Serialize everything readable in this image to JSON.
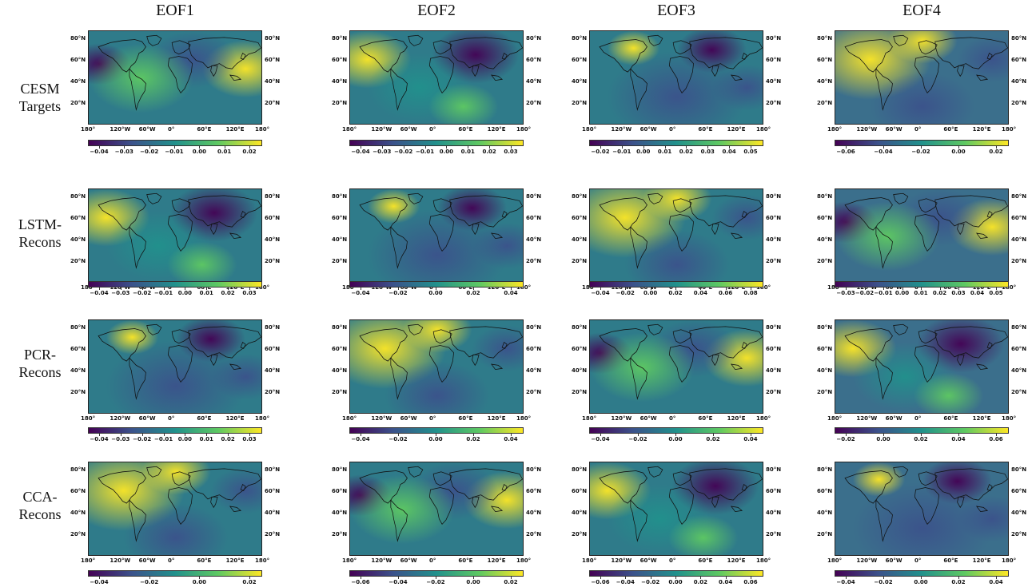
{
  "figure": {
    "columns": [
      "EOF1",
      "EOF2",
      "EOF3",
      "EOF4"
    ],
    "rows": [
      {
        "line1": "CESM",
        "line2": "Targets"
      },
      {
        "line1": "LSTM-",
        "line2": "Recons"
      },
      {
        "line1": "PCR-",
        "line2": "Recons"
      },
      {
        "line1": "CCA-",
        "line2": "Recons"
      }
    ],
    "lat_labels": [
      "80°N",
      "60°N",
      "40°N",
      "20°N"
    ],
    "lon_labels": [
      "180°",
      "120°W",
      "60°W",
      "0°",
      "60°E",
      "120°E",
      "180°"
    ],
    "colormap": [
      "#440154",
      "#3b528b",
      "#21918c",
      "#5ec962",
      "#fde725"
    ],
    "colorbars": [
      [
        [
          "−0.04",
          "−0.03",
          "−0.02",
          "−0.01",
          "0.00",
          "0.01",
          "0.02"
        ],
        [
          "−0.04",
          "−0.03",
          "−0.02",
          "−0.01",
          "0.00",
          "0.01",
          "0.02",
          "0.03"
        ],
        [
          "−0.02",
          "−0.01",
          "0.00",
          "0.01",
          "0.02",
          "0.03",
          "0.04",
          "0.05"
        ],
        [
          "−0.06",
          "−0.04",
          "−0.02",
          "0.00",
          "0.02"
        ]
      ],
      [
        [
          "−0.04",
          "−0.03",
          "−0.02",
          "−0.01",
          "0.00",
          "0.01",
          "0.02",
          "0.03"
        ],
        [
          "−0.04",
          "−0.02",
          "0.00",
          "0.02",
          "0.04"
        ],
        [
          "−0.04",
          "−0.02",
          "0.00",
          "0.02",
          "0.04",
          "0.06",
          "0.08"
        ],
        [
          "−0.03",
          "−0.02",
          "−0.01",
          "0.00",
          "0.01",
          "0.02",
          "0.03",
          "0.04",
          "0.05"
        ]
      ],
      [
        [
          "−0.04",
          "−0.03",
          "−0.02",
          "−0.01",
          "0.00",
          "0.01",
          "0.02",
          "0.03"
        ],
        [
          "−0.04",
          "−0.02",
          "0.00",
          "0.02",
          "0.04"
        ],
        [
          "−0.04",
          "−0.02",
          "0.00",
          "0.02",
          "0.04"
        ],
        [
          "−0.02",
          "0.00",
          "0.02",
          "0.04",
          "0.06"
        ]
      ],
      [
        [
          "−0.04",
          "−0.02",
          "0.00",
          "0.02"
        ],
        [
          "−0.06",
          "−0.04",
          "−0.02",
          "0.00",
          "0.02"
        ],
        [
          "−0.06",
          "−0.04",
          "−0.02",
          "0.00",
          "0.02",
          "0.04",
          "0.06"
        ],
        [
          "−0.04",
          "−0.02",
          "0.00",
          "0.02",
          "0.04"
        ]
      ]
    ]
  }
}
